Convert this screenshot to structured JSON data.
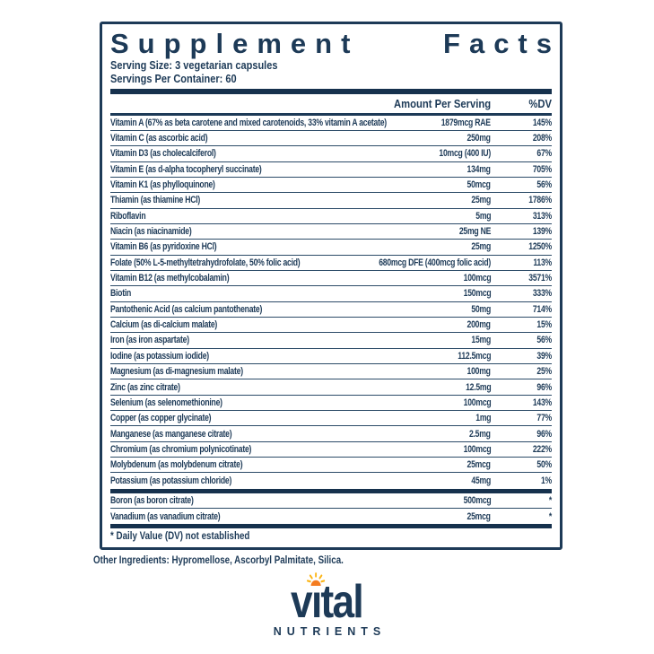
{
  "panel": {
    "title_left": "Supplement",
    "title_right": "Facts",
    "serving_size": "Serving Size: 3 vegetarian capsules",
    "servings_per_container": "Servings Per Container: 60",
    "col_amount": "Amount Per Serving",
    "col_dv": "%DV",
    "rows": [
      {
        "name": "Vitamin A (67% as beta carotene and mixed carotenoids, 33% vitamin A acetate)",
        "amount": "1879mcg RAE",
        "dv": "145%"
      },
      {
        "name": "Vitamin C (as ascorbic acid)",
        "amount": "250mg",
        "dv": "208%"
      },
      {
        "name": "Vitamin D3 (as cholecalciferol)",
        "amount": "10mcg (400 IU)",
        "dv": "67%"
      },
      {
        "name": "Vitamin E (as d-alpha tocopheryl succinate)",
        "amount": "134mg",
        "dv": "705%"
      },
      {
        "name": "Vitamin K1 (as phylloquinone)",
        "amount": "50mcg",
        "dv": "56%"
      },
      {
        "name": "Thiamin (as thiamine HCl)",
        "amount": "25mg",
        "dv": "1786%"
      },
      {
        "name": "Riboflavin",
        "amount": "5mg",
        "dv": "313%"
      },
      {
        "name": "Niacin (as niacinamide)",
        "amount": "25mg NE",
        "dv": "139%"
      },
      {
        "name": "Vitamin B6 (as pyridoxine HCl)",
        "amount": "25mg",
        "dv": "1250%"
      },
      {
        "name": "Folate (50% L-5-methyltetrahydrofolate, 50% folic acid)",
        "amount": "680mcg DFE (400mcg folic acid)",
        "dv": "113%"
      },
      {
        "name": "Vitamin B12 (as methylcobalamin)",
        "amount": "100mcg",
        "dv": "3571%"
      },
      {
        "name": "Biotin",
        "amount": "150mcg",
        "dv": "333%"
      },
      {
        "name": "Pantothenic Acid (as calcium pantothenate)",
        "amount": "50mg",
        "dv": "714%"
      },
      {
        "name": "Calcium (as di-calcium malate)",
        "amount": "200mg",
        "dv": "15%"
      },
      {
        "name": "Iron (as iron aspartate)",
        "amount": "15mg",
        "dv": "56%"
      },
      {
        "name": "Iodine (as potassium iodide)",
        "amount": "112.5mcg",
        "dv": "39%"
      },
      {
        "name": "Magnesium (as di-magnesium malate)",
        "amount": "100mg",
        "dv": "25%"
      },
      {
        "name": "Zinc (as zinc citrate)",
        "amount": "12.5mg",
        "dv": "96%"
      },
      {
        "name": "Selenium (as selenomethionine)",
        "amount": "100mcg",
        "dv": "143%"
      },
      {
        "name": "Copper (as copper glycinate)",
        "amount": "1mg",
        "dv": "77%"
      },
      {
        "name": "Manganese (as manganese citrate)",
        "amount": "2.5mg",
        "dv": "96%"
      },
      {
        "name": "Chromium (as chromium polynicotinate)",
        "amount": "100mcg",
        "dv": "222%"
      },
      {
        "name": "Molybdenum (as molybdenum citrate)",
        "amount": "25mcg",
        "dv": "50%"
      },
      {
        "name": "Potassium (as potassium chloride)",
        "amount": "45mg",
        "dv": "1%"
      }
    ],
    "footnote_rows": [
      {
        "name": "Boron (as boron citrate)",
        "amount": "500mcg",
        "dv": "*"
      },
      {
        "name": "Vanadium (as vanadium citrate)",
        "amount": "25mcg",
        "dv": "*"
      }
    ],
    "footnote": "* Daily Value (DV) not established"
  },
  "other_ingredients": "Other Ingredients: Hypromellose, Ascorbyl Palmitate, Silica.",
  "logo": {
    "word_start": "v",
    "word_i": "ı",
    "word_end": "tal",
    "subtext": "NUTRIENTS"
  },
  "colors": {
    "navy": "#1d3a57",
    "bar_navy": "#16314d",
    "row_line": "#2c4b68",
    "sun_orange": "#f47c20",
    "sun_yellow": "#fbb517"
  }
}
